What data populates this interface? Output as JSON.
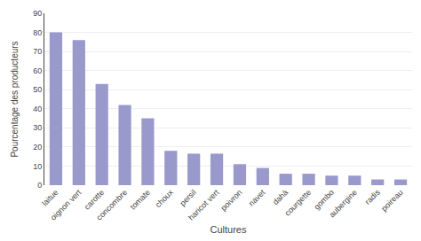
{
  "chart_data": {
    "type": "bar",
    "xlabel": "Cultures",
    "ylabel": "Pourcentage des producteurs",
    "categories": [
      "laitue",
      "oignon vert",
      "carotte",
      "concombre",
      "tomate",
      "choux",
      "persil",
      "haricot vert",
      "poivron",
      "navet",
      "dahà",
      "courgette",
      "gombo",
      "aubergine",
      "radis",
      "poireau"
    ],
    "values": [
      80,
      76,
      53,
      42,
      35,
      18,
      16.5,
      16.5,
      11,
      9,
      6,
      6,
      5,
      5,
      3,
      3
    ],
    "color": "#9999cc",
    "ylim": [
      0,
      90
    ],
    "yticks": [
      0,
      10,
      20,
      30,
      40,
      50,
      60,
      70,
      80,
      90
    ],
    "grid": true
  }
}
